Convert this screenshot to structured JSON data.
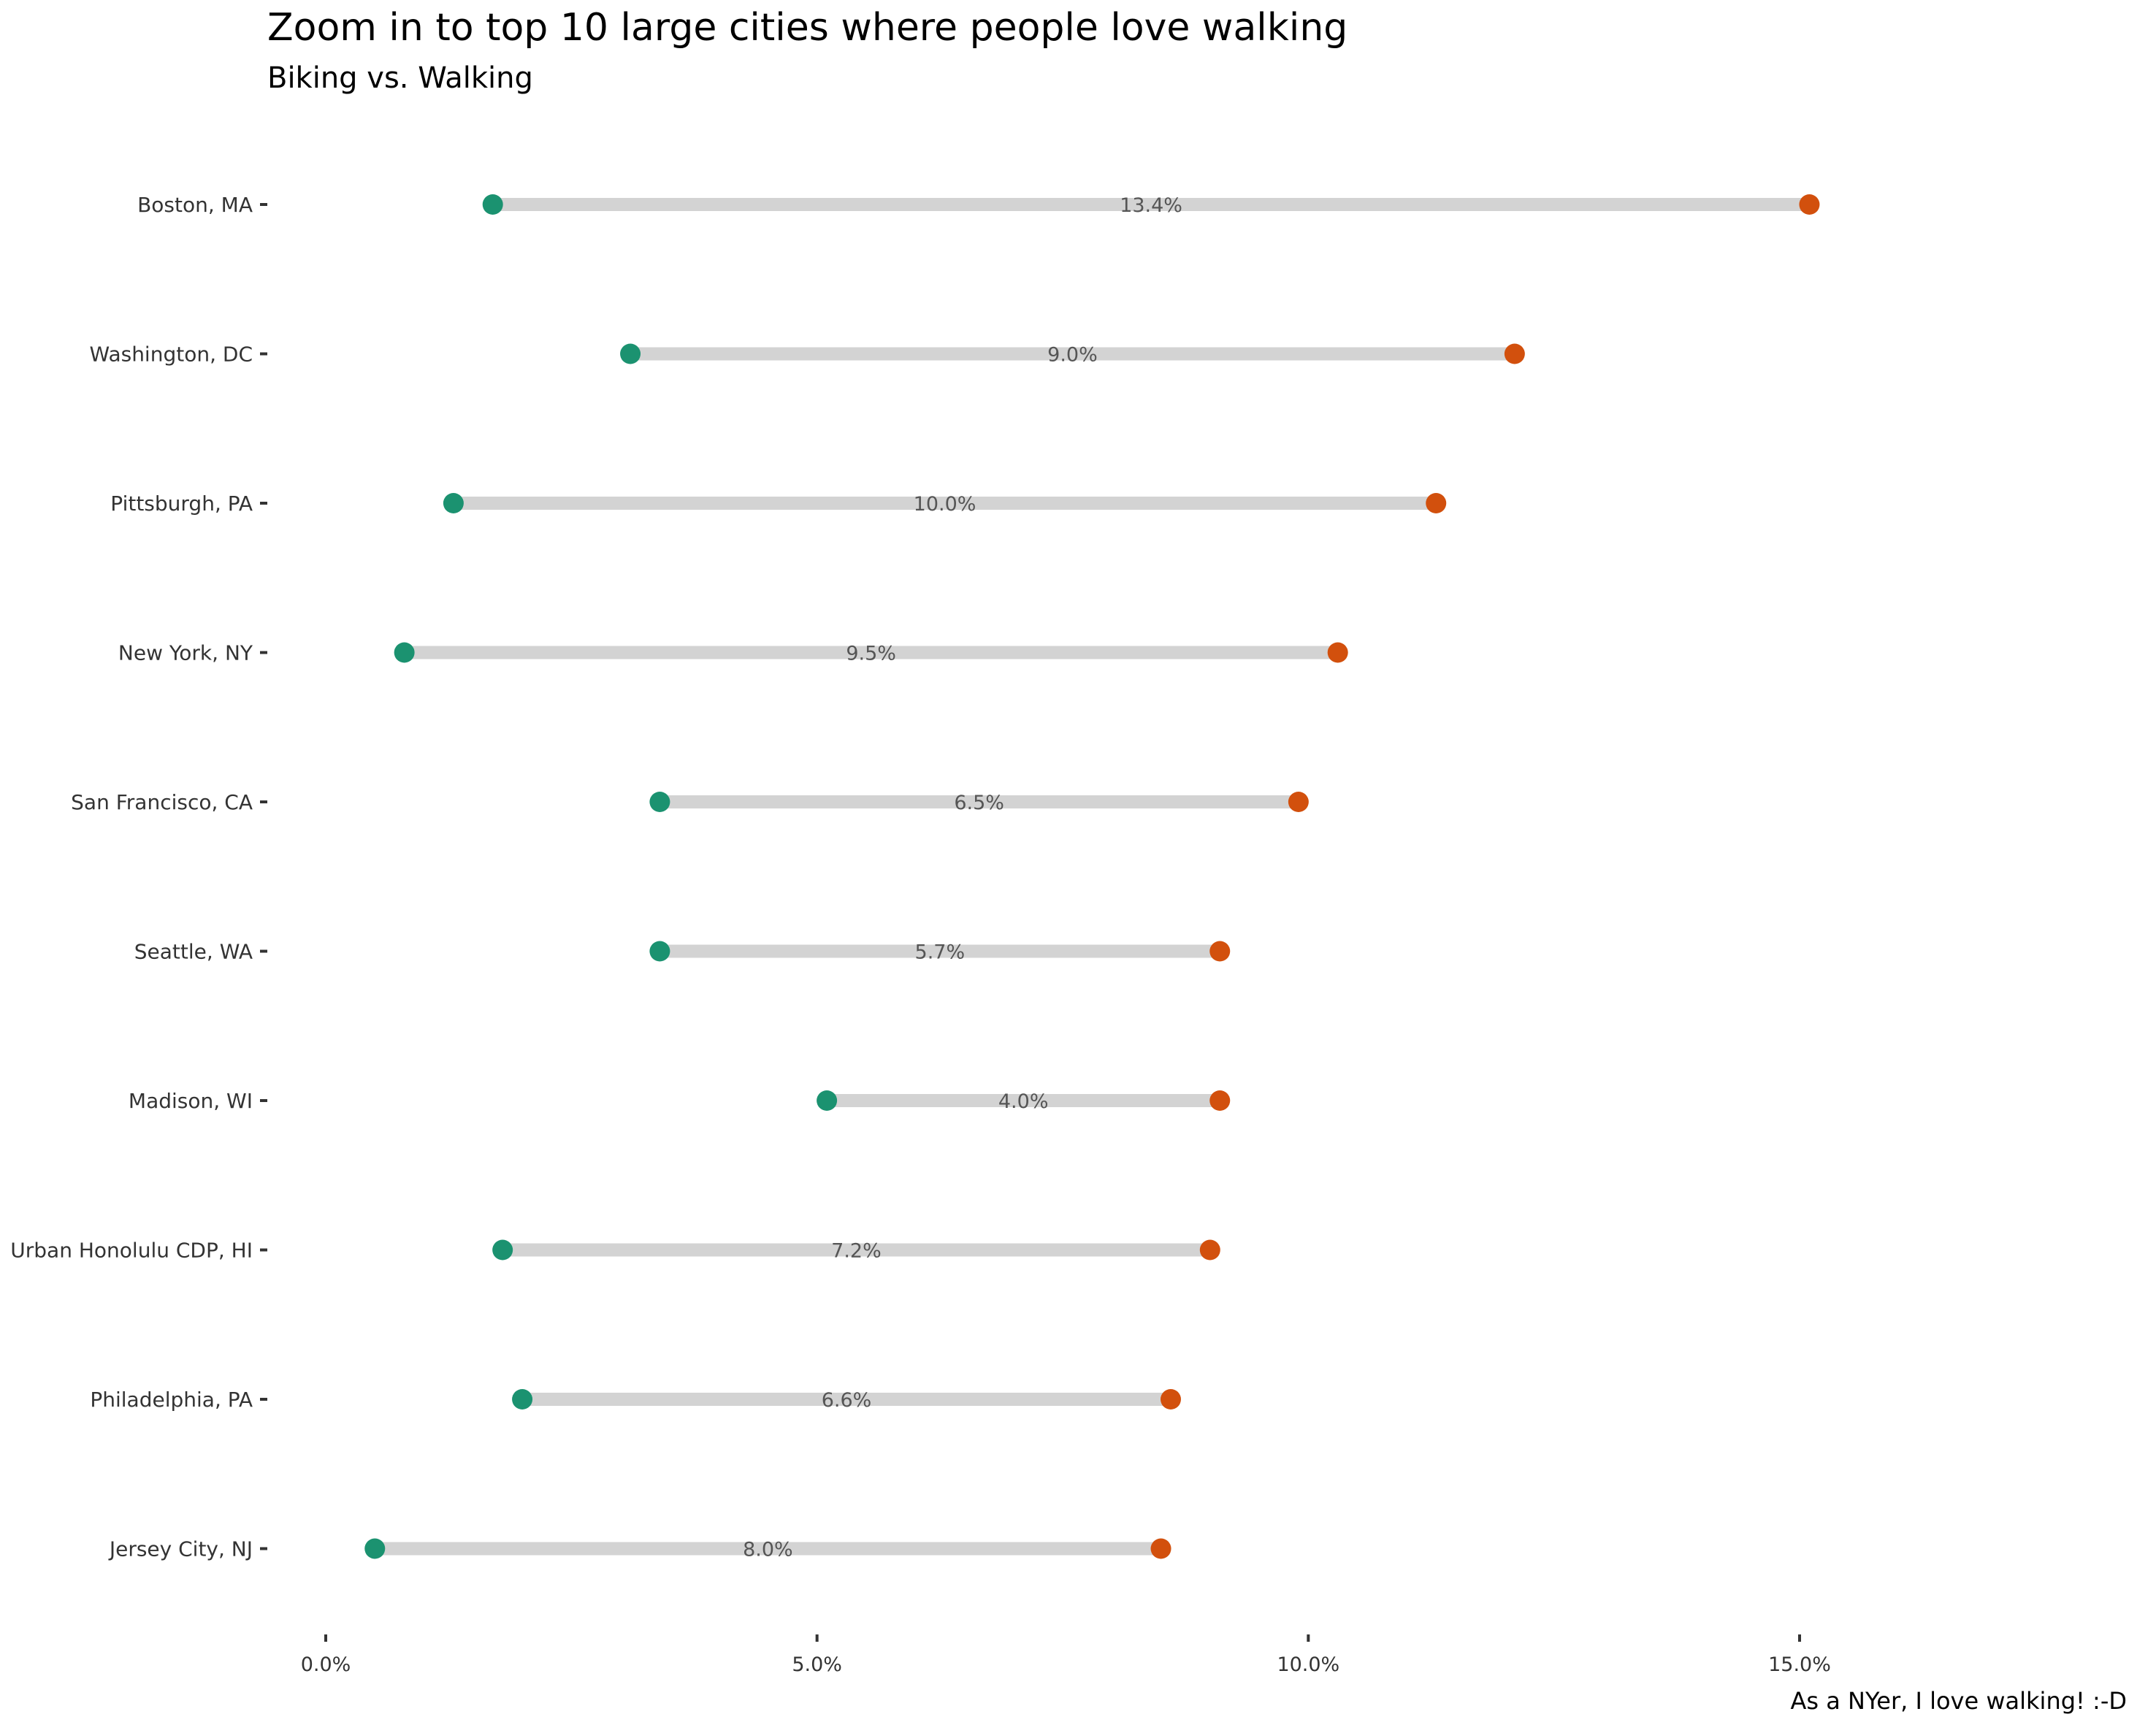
{
  "chart_data": {
    "type": "dumbbell",
    "title": "Zoom in to top 10 large cities where people love walking",
    "subtitle": "Biking vs. Walking",
    "caption": "As a NYer, I love walking! :-D",
    "xlim": [
      0,
      18.5
    ],
    "x_ticks": [
      0,
      5,
      10,
      15
    ],
    "x_tick_labels": [
      "0.0%",
      "5.0%",
      "10.0%",
      "15.0%"
    ],
    "grid": false,
    "colors": {
      "biking": "#1b9270",
      "walking": "#d2500d",
      "segment": "#d3d3d3",
      "diff_label": "#555555"
    },
    "rows": [
      {
        "city": "Boston, MA",
        "biking": 1.7,
        "walking": 15.1,
        "diff_label": "13.4%"
      },
      {
        "city": "Washington, DC",
        "biking": 3.1,
        "walking": 12.1,
        "diff_label": "9.0%"
      },
      {
        "city": "Pittsburgh, PA",
        "biking": 1.3,
        "walking": 11.3,
        "diff_label": "10.0%"
      },
      {
        "city": "New York, NY",
        "biking": 0.8,
        "walking": 10.3,
        "diff_label": "9.5%"
      },
      {
        "city": "San Francisco, CA",
        "biking": 3.4,
        "walking": 9.9,
        "diff_label": "6.5%"
      },
      {
        "city": "Seattle, WA",
        "biking": 3.4,
        "walking": 9.1,
        "diff_label": "5.7%"
      },
      {
        "city": "Madison, WI",
        "biking": 5.1,
        "walking": 9.1,
        "diff_label": "4.0%"
      },
      {
        "city": "Urban Honolulu CDP, HI",
        "biking": 1.8,
        "walking": 9.0,
        "diff_label": "7.2%"
      },
      {
        "city": "Philadelphia, PA",
        "biking": 2.0,
        "walking": 8.6,
        "diff_label": "6.6%"
      },
      {
        "city": "Jersey City, NJ",
        "biking": 0.5,
        "walking": 8.5,
        "diff_label": "8.0%"
      }
    ]
  }
}
